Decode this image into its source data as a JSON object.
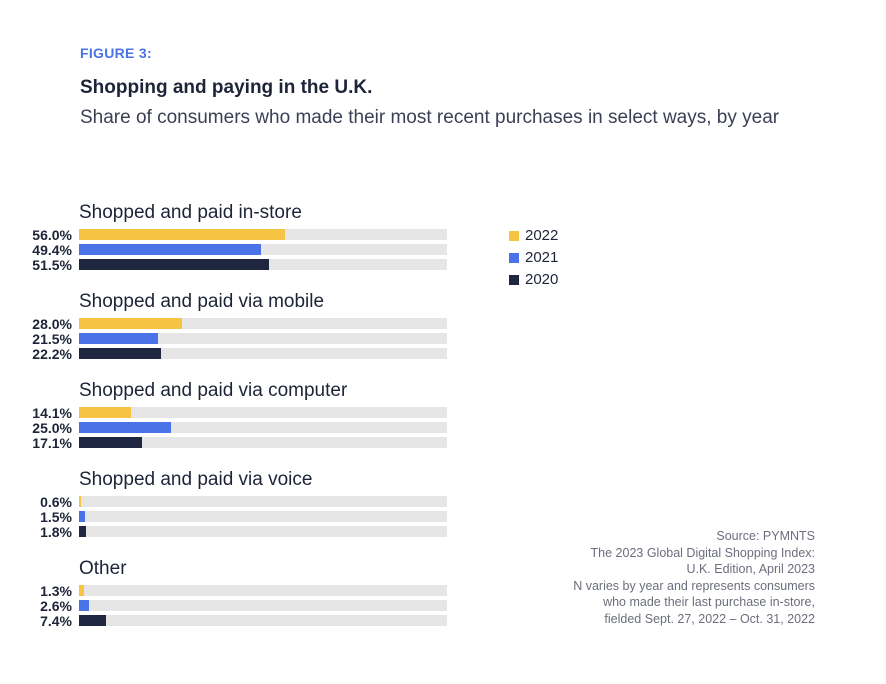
{
  "figure_label": "FIGURE 3:",
  "title": "Shopping and paying in the U.K.",
  "subtitle": "Share of consumers who made their most recent purchases in select ways, by year",
  "colors": {
    "2022": "#f6c343",
    "2021": "#4b73e8",
    "2020": "#1f2640",
    "track": "#e6e6e6"
  },
  "chart_data": {
    "type": "bar",
    "orientation": "horizontal",
    "xlim": [
      0,
      100
    ],
    "categories": [
      "Shopped and paid in-store",
      "Shopped and paid via mobile",
      "Shopped and paid via computer",
      "Shopped and paid via voice",
      "Other"
    ],
    "series": [
      {
        "name": "2022",
        "values": [
          56.0,
          28.0,
          14.1,
          0.6,
          1.3
        ],
        "labels": [
          "56.0%",
          "28.0%",
          "14.1%",
          "0.6%",
          "1.3%"
        ]
      },
      {
        "name": "2021",
        "values": [
          49.4,
          21.5,
          25.0,
          1.5,
          2.6
        ],
        "labels": [
          "49.4%",
          "21.5%",
          "25.0%",
          "1.5%",
          "2.6%"
        ]
      },
      {
        "name": "2020",
        "values": [
          51.5,
          22.2,
          17.1,
          1.8,
          7.4
        ],
        "labels": [
          "51.5%",
          "22.2%",
          "17.1%",
          "1.8%",
          "7.4%"
        ]
      }
    ],
    "legend_position": "right"
  },
  "source_lines": [
    "Source: PYMNTS",
    "The 2023 Global Digital Shopping Index:",
    "U.K. Edition, April 2023",
    "N varies by year and represents consumers",
    "who made their last purchase in-store,",
    "fielded Sept. 27, 2022 – Oct. 31, 2022"
  ]
}
